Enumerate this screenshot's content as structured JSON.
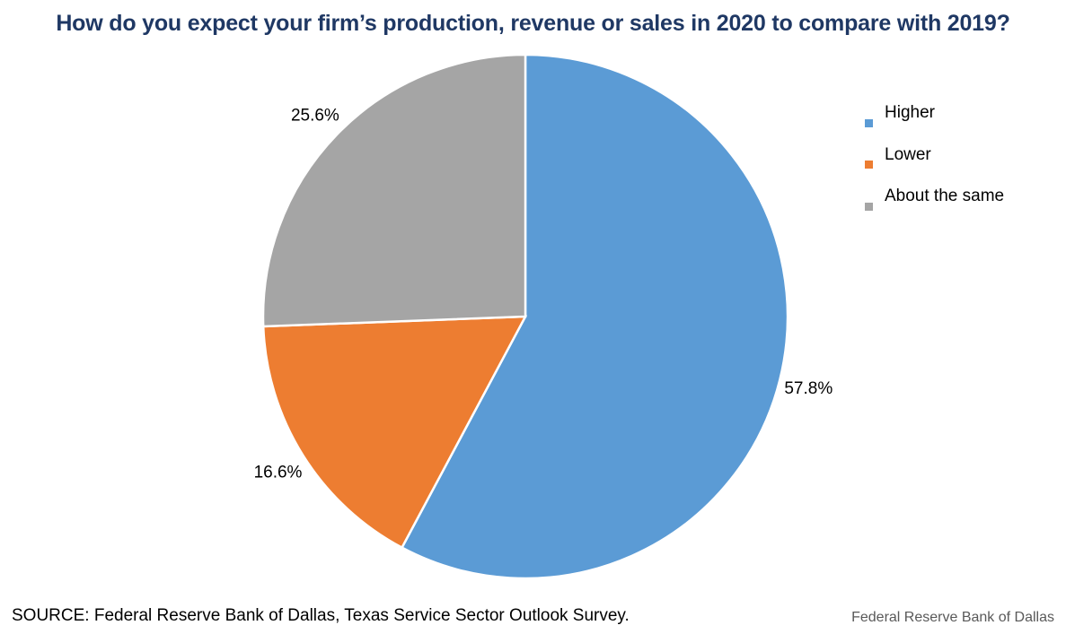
{
  "title": "How do you expect your firm’s production, revenue or sales in 2020 to compare with 2019?",
  "source": "SOURCE: Federal Reserve Bank of Dallas, Texas Service Sector Outlook Survey.",
  "credit": "Federal Reserve Bank of Dallas",
  "chart_data": {
    "type": "pie",
    "title": "How do you expect your firm’s production, revenue or sales in 2020 to compare with 2019?",
    "categories": [
      "Higher",
      "Lower",
      "About the same"
    ],
    "values": [
      57.8,
      16.6,
      25.6
    ],
    "labels": [
      "57.8%",
      "16.6%",
      "25.6%"
    ],
    "colors": [
      "#5b9bd5",
      "#ed7d31",
      "#a5a5a5"
    ],
    "start_angle": "12 o'clock",
    "direction": "clockwise",
    "legend_position": "right"
  }
}
